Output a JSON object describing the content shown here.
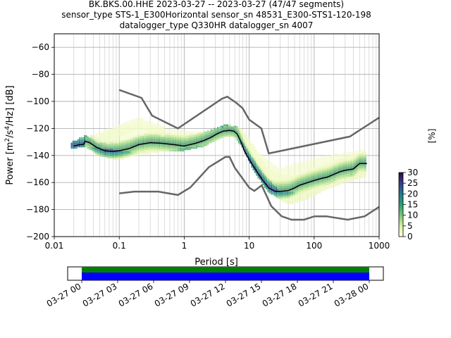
{
  "chart_data": {
    "type": "heatmap",
    "title_lines": [
      "BK.BKS.00.HHE   2023-03-27 -- 2023-03-27  (47/47 segments)",
      "sensor_type STS-1_E300Horizontal sensor_sn 48531_E300-STS1-120-198",
      "datalogger_type Q330HR datalogger_sn 4007"
    ],
    "xlabel": "Period [s]",
    "ylabel_parts": [
      "Power [m",
      "2",
      "/s",
      "4",
      "/Hz] [dB]"
    ],
    "x_scale": "log",
    "xlim": [
      0.01,
      1000
    ],
    "ylim": [
      -200,
      -50
    ],
    "x_ticks": [
      {
        "value": 0.01,
        "label": "0.01"
      },
      {
        "value": 0.1,
        "label": "0.1"
      },
      {
        "value": 1,
        "label": "1"
      },
      {
        "value": 10,
        "label": "10"
      },
      {
        "value": 100,
        "label": "100"
      },
      {
        "value": 1000,
        "label": "1000"
      }
    ],
    "y_ticks": [
      {
        "value": -60,
        "label": "−60"
      },
      {
        "value": -80,
        "label": "−80"
      },
      {
        "value": -100,
        "label": "−100"
      },
      {
        "value": -120,
        "label": "−120"
      },
      {
        "value": -140,
        "label": "−140"
      },
      {
        "value": -160,
        "label": "−160"
      },
      {
        "value": -180,
        "label": "−180"
      },
      {
        "value": -200,
        "label": "−200"
      }
    ],
    "grid": true,
    "colorbar": {
      "label": "[%]",
      "range": [
        0,
        30
      ],
      "ticks": [
        {
          "value": 0,
          "label": "0"
        },
        {
          "value": 5,
          "label": "5"
        },
        {
          "value": 10,
          "label": "10"
        },
        {
          "value": 15,
          "label": "15"
        },
        {
          "value": 20,
          "label": "20"
        },
        {
          "value": 25,
          "label": "25"
        },
        {
          "value": 30,
          "label": "30"
        }
      ],
      "colors": [
        "#ffffe0",
        "#d9f0a3",
        "#78c679",
        "#2e9e73",
        "#1f7a8c",
        "#3a3b8e",
        "#2b0b3f"
      ]
    },
    "noise_model_color": "#666666",
    "mean_color": "#000000",
    "new_high_noise_model": {
      "x": [
        0.1,
        0.22,
        0.32,
        0.8,
        3.8,
        4.6,
        6.3,
        7.9,
        10,
        15.4,
        20,
        354.8,
        1000
      ],
      "y": [
        -91.5,
        -97.4,
        -110.5,
        -120,
        -98,
        -96.5,
        -101,
        -105,
        -113.5,
        -120,
        -138.5,
        -126,
        -112
      ]
    },
    "new_low_noise_model": {
      "x": [
        0.1,
        0.17,
        0.4,
        0.8,
        1.24,
        2.4,
        4.3,
        5,
        6,
        10,
        12,
        15.6,
        21.9,
        31.6,
        45,
        70,
        101,
        154,
        328,
        600,
        1000
      ],
      "y": [
        -168,
        -166.7,
        -166.7,
        -169.2,
        -163.7,
        -148.6,
        -141.1,
        -141.1,
        -149,
        -163.8,
        -166.2,
        -162.1,
        -177.5,
        -185,
        -187.5,
        -187.5,
        -185,
        -185,
        -187.5,
        -185,
        -178
      ]
    },
    "mean_curve": {
      "x": [
        0.02,
        0.025,
        0.028,
        0.03,
        0.035,
        0.045,
        0.06,
        0.08,
        0.1,
        0.14,
        0.2,
        0.3,
        0.45,
        0.7,
        1.0,
        1.5,
        2.0,
        2.6,
        3.2,
        4.0,
        5.0,
        5.8,
        6.5,
        7.5,
        8.5,
        10,
        12,
        14,
        16,
        20,
        25,
        30,
        40,
        50,
        60,
        80,
        100,
        130,
        160,
        200,
        250,
        300,
        400,
        500,
        650
      ],
      "y": [
        -133,
        -132,
        -132,
        -129.5,
        -130.5,
        -134,
        -136.5,
        -137,
        -136.5,
        -135,
        -132,
        -130.5,
        -131,
        -132,
        -133,
        -131,
        -129,
        -126.5,
        -124,
        -122,
        -121.5,
        -122,
        -124,
        -130,
        -137,
        -143,
        -149,
        -154,
        -158,
        -164,
        -166.5,
        -166.5,
        -166,
        -164,
        -162,
        -160,
        -158.5,
        -157,
        -156,
        -154,
        -152,
        -151,
        -150,
        -146,
        -146
      ]
    },
    "density_bands": [
      {
        "x": [
          0.018,
          0.03,
          0.05,
          0.1,
          0.2,
          0.4,
          0.8,
          2,
          4,
          6,
          8,
          12,
          20,
          40,
          80,
          150,
          300,
          650
        ],
        "upper": [
          -131,
          -126,
          -132,
          -131,
          -126,
          -124,
          -126,
          -124,
          -118,
          -119,
          -122,
          -135,
          -151,
          -156,
          -152,
          -147,
          -142,
          -138
        ],
        "lower": [
          -135,
          -133,
          -140,
          -143,
          -139,
          -137,
          -137,
          -133,
          -126,
          -126,
          -134,
          -152,
          -167,
          -176,
          -172,
          -165,
          -160,
          -155
        ],
        "level": 3
      },
      {
        "x": [
          0.03,
          0.08,
          0.2,
          0.6,
          2,
          5,
          8,
          15,
          30,
          80,
          200,
          650
        ],
        "upper": [
          -128,
          -120,
          -118,
          -121,
          -124,
          -118,
          -122,
          -140,
          -150,
          -144,
          -140,
          -136
        ],
        "lower": [
          -133,
          -135,
          -138,
          -136,
          -132,
          -125,
          -130,
          -150,
          -166,
          -168,
          -158,
          -150
        ],
        "level": 1
      },
      {
        "x": [
          0.05,
          0.1,
          0.2,
          0.3,
          0.5
        ],
        "upper": [
          -125,
          -118,
          -112,
          -116,
          -120
        ],
        "lower": [
          -130,
          -126,
          -120,
          -122,
          -126
        ],
        "level": 0
      }
    ]
  },
  "timeline": {
    "tick_labels": [
      "03-27 00",
      "03-27 03",
      "03-27 06",
      "03-27 09",
      "03-27 12",
      "03-27 15",
      "03-27 18",
      "03-27 21",
      "03-28 00"
    ],
    "data_color": "#0000ff",
    "psd_color": "#008000"
  }
}
